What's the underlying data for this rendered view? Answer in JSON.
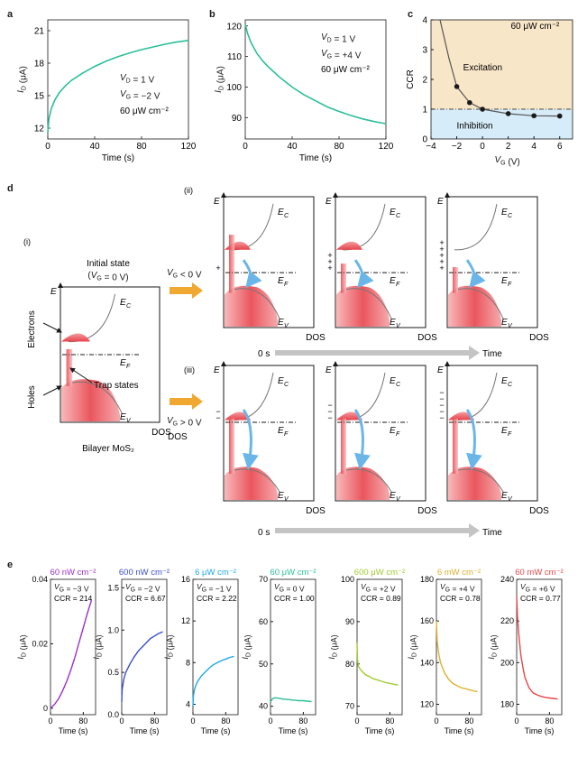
{
  "panels": {
    "a": {
      "label": "a"
    },
    "b": {
      "label": "b"
    },
    "c": {
      "label": "c"
    },
    "d": {
      "label": "d"
    },
    "e": {
      "label": "e"
    }
  },
  "colors": {
    "curve": "#2bbf9a",
    "red": "#e8434b",
    "blue_arrow": "#6ab6e8",
    "orange_arrow": "#f0a830",
    "grey_arrow": "#c4c4c4",
    "excite_bg": "#f8e6c8",
    "inhibit_bg": "#d6ecf8"
  },
  "chart_data": [
    {
      "panel": "a",
      "type": "line",
      "xlabel": "Time (s)",
      "ylabel": "I_D (μA)",
      "xlim": [
        0,
        120
      ],
      "ylim": [
        11,
        22
      ],
      "xticks": [
        0,
        40,
        80,
        120
      ],
      "yticks": [
        12,
        15,
        18,
        21
      ],
      "annotations": [
        "V_D = 1 V",
        "V_G = −2 V",
        "60 μW cm⁻²"
      ],
      "series": [
        {
          "x": [
            0,
            1,
            3,
            6,
            10,
            15,
            20,
            30,
            40,
            50,
            60,
            70,
            80,
            90,
            100,
            110,
            120
          ],
          "y": [
            11.6,
            12.9,
            13.8,
            14.6,
            15.3,
            15.9,
            16.4,
            17.1,
            17.7,
            18.2,
            18.6,
            18.95,
            19.25,
            19.5,
            19.75,
            19.95,
            20.1
          ]
        }
      ]
    },
    {
      "panel": "b",
      "type": "line",
      "xlabel": "Time (s)",
      "ylabel": "I_D (μA)",
      "xlim": [
        0,
        120
      ],
      "ylim": [
        83,
        122
      ],
      "xticks": [
        0,
        40,
        80,
        120
      ],
      "yticks": [
        90,
        100,
        110,
        120
      ],
      "annotations": [
        "V_D = 1 V",
        "V_G = +4 V",
        "60 μW cm⁻²"
      ],
      "series": [
        {
          "x": [
            0,
            2,
            5,
            10,
            15,
            20,
            30,
            40,
            50,
            60,
            70,
            80,
            90,
            100,
            110,
            120
          ],
          "y": [
            120.5,
            117.5,
            114.5,
            111,
            108.5,
            106.5,
            103,
            100,
            97.5,
            95.5,
            93.5,
            92,
            90.7,
            89.6,
            88.7,
            88
          ]
        }
      ]
    },
    {
      "panel": "c",
      "type": "scatter",
      "xlabel": "V_G (V)",
      "ylabel": "CCR",
      "xlim": [
        -4,
        7
      ],
      "ylim": [
        0,
        4
      ],
      "xticks": [
        -4,
        -2,
        0,
        2,
        4,
        6
      ],
      "yticks": [
        0,
        1,
        2,
        3,
        4
      ],
      "annotations": [
        "60 μW cm⁻²",
        "Excitation",
        "Inhibition"
      ],
      "reference_line": 1,
      "series": [
        {
          "x": [
            -2,
            -1,
            0,
            2,
            4,
            6
          ],
          "y": [
            1.76,
            1.22,
            1.0,
            0.85,
            0.78,
            0.77
          ]
        }
      ],
      "curve_extension": {
        "x": [
          -3.3,
          -2.6,
          -2
        ],
        "y": [
          4.0,
          2.7,
          1.76
        ]
      }
    },
    {
      "panel": "e",
      "type": "line",
      "subplots": [
        {
          "title": "60 nW cm⁻²",
          "color": "#9b30c8",
          "vg": "V_G = −3 V",
          "ccr": "CCR = 214",
          "ylim": [
            -0.002,
            0.04
          ],
          "yticks": [
            "0",
            "0.02",
            "0.04"
          ],
          "ytick_values": [
            0,
            0.02,
            0.04
          ],
          "x": [
            0,
            10,
            20,
            30,
            40,
            50,
            60,
            70,
            80,
            90,
            100
          ],
          "y": [
            0,
            0.0012,
            0.003,
            0.0055,
            0.0085,
            0.012,
            0.016,
            0.0205,
            0.025,
            0.0295,
            0.0335
          ]
        },
        {
          "title": "600 nW cm⁻²",
          "color": "#3a4fd0",
          "vg": "V_G = −2 V",
          "ccr": "CCR = 6.67",
          "ylim": [
            0,
            1.6
          ],
          "yticks": [
            "0.0",
            "0.5",
            "1.0",
            "1.5"
          ],
          "ytick_values": [
            0,
            0.5,
            1.0,
            1.5
          ],
          "x": [
            0,
            1,
            5,
            10,
            20,
            30,
            40,
            50,
            60,
            70,
            80,
            90,
            100
          ],
          "y": [
            0.15,
            0.3,
            0.42,
            0.5,
            0.6,
            0.68,
            0.75,
            0.8,
            0.85,
            0.9,
            0.93,
            0.96,
            0.98
          ]
        },
        {
          "title": "6 μW cm⁻²",
          "color": "#20a8e8",
          "vg": "V_G = −1 V",
          "ccr": "CCR = 2.22",
          "ylim": [
            3,
            16
          ],
          "yticks": [
            "4",
            "8",
            "12",
            "16"
          ],
          "ytick_values": [
            4,
            8,
            12,
            16
          ],
          "x": [
            0,
            1,
            3,
            5,
            10,
            20,
            30,
            40,
            50,
            60,
            70,
            80,
            90,
            100
          ],
          "y": [
            3.8,
            4.8,
            5.3,
            5.6,
            6.1,
            6.7,
            7.1,
            7.5,
            7.8,
            8.0,
            8.2,
            8.35,
            8.5,
            8.6
          ]
        },
        {
          "title": "60 μW cm⁻²",
          "color": "#2bbf9a",
          "vg": "V_G = 0 V",
          "ccr": "CCR = 1.00",
          "ylim": [
            38,
            70
          ],
          "yticks": [
            "40",
            "50",
            "60",
            "70"
          ],
          "ytick_values": [
            40,
            50,
            60,
            70
          ],
          "x": [
            0,
            5,
            10,
            20,
            30,
            40,
            50,
            60,
            70,
            80,
            90,
            100
          ],
          "y": [
            41,
            41.8,
            42,
            41.9,
            41.7,
            41.6,
            41.5,
            41.4,
            41.3,
            41.3,
            41.2,
            41.1
          ]
        },
        {
          "title": "600 μW cm⁻²",
          "color": "#a0cc30",
          "vg": "V_G = +2 V",
          "ccr": "CCR = 0.89",
          "ylim": [
            68,
            100
          ],
          "yticks": [
            "70",
            "80",
            "90",
            "100"
          ],
          "ytick_values": [
            70,
            80,
            90,
            100
          ],
          "x": [
            0,
            1,
            3,
            6,
            10,
            20,
            30,
            40,
            50,
            60,
            70,
            80,
            90,
            100
          ],
          "y": [
            85,
            81,
            79.5,
            79,
            78.5,
            77.5,
            77,
            76.5,
            76.2,
            75.9,
            75.6,
            75.4,
            75.2,
            75
          ]
        },
        {
          "title": "6 mW cm⁻²",
          "color": "#e0b030",
          "vg": "V_G = +4 V",
          "ccr": "CCR = 0.78",
          "ylim": [
            115,
            180
          ],
          "yticks": [
            "120",
            "140",
            "160",
            "180"
          ],
          "ytick_values": [
            120,
            140,
            160,
            180
          ],
          "x": [
            0,
            2,
            5,
            10,
            20,
            30,
            40,
            50,
            60,
            70,
            80,
            90,
            100
          ],
          "y": [
            160,
            150,
            145,
            140,
            135,
            132,
            130,
            129,
            128,
            127.5,
            127,
            126.5,
            126
          ]
        },
        {
          "title": "60 mW cm⁻²",
          "color": "#e84848",
          "vg": "V_G = +6 V",
          "ccr": "CCR = 0.77",
          "ylim": [
            175,
            240
          ],
          "yticks": [
            "180",
            "200",
            "220",
            "240"
          ],
          "ytick_values": [
            180,
            200,
            220,
            240
          ],
          "x": [
            0,
            2,
            5,
            10,
            15,
            20,
            30,
            40,
            50,
            60,
            70,
            80,
            90,
            100
          ],
          "y": [
            232,
            222,
            214,
            204,
            198,
            193,
            188,
            185.5,
            184.5,
            183.8,
            183.3,
            183,
            182.8,
            182.5
          ]
        }
      ],
      "xlabel": "Time (s)",
      "ylabel": "I_D (μA)",
      "xlim": [
        0,
        110
      ],
      "xticks": [
        0,
        80
      ]
    }
  ],
  "diagram": {
    "i_label": "(i)",
    "ii_label": "(ii)",
    "iii_label": "(iii)",
    "initial_state": "Initial state",
    "initial_vg": "(V_G = 0 V)",
    "electrons": "Electrons",
    "holes": "Holes",
    "trap_states": "Trap states",
    "material": "Bilayer MoS₂",
    "E": "E",
    "Ec": "E_C",
    "Ef": "E_F",
    "Ev": "E_V",
    "dos": "DOS",
    "vg_neg": "V_G < 0 V",
    "vg_pos": "V_G > 0 V",
    "time_start": "0 s",
    "time_end": "Time"
  }
}
